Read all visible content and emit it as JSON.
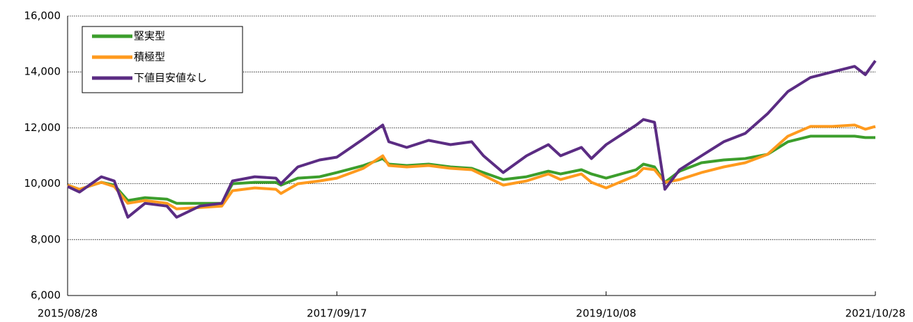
{
  "chart_data": {
    "type": "line",
    "x": [
      "2015/08/28",
      "2015/09/30",
      "2015/11/30",
      "2016/01/05",
      "2016/02/12",
      "2016/03/31",
      "2016/05/31",
      "2016/06/27",
      "2016/08/31",
      "2016/10/31",
      "2016/11/30",
      "2017/01/31",
      "2017/03/31",
      "2017/04/14",
      "2017/05/31",
      "2017/07/31",
      "2017/09/17",
      "2017/11/30",
      "2018/01/23",
      "2018/02/09",
      "2018/03/31",
      "2018/05/31",
      "2018/07/31",
      "2018/09/28",
      "2018/10/31",
      "2018/12/25",
      "2019/02/28",
      "2019/04/30",
      "2019/06/03",
      "2019/07/31",
      "2019/08/28",
      "2019/10/08",
      "2019/12/31",
      "2020/01/20",
      "2020/02/20",
      "2020/03/20",
      "2020/04/30",
      "2020/06/30",
      "2020/08/31",
      "2020/10/30",
      "2020/12/31",
      "2021/02/26",
      "2021/04/30",
      "2021/06/30",
      "2021/08/31",
      "2021/09/30",
      "2021/10/28"
    ],
    "series": [
      {
        "name": "堅実型",
        "color": "#3c9e2c",
        "values": [
          9950,
          9800,
          10050,
          9950,
          9400,
          9500,
          9450,
          9300,
          9300,
          9300,
          10000,
          10050,
          10050,
          9950,
          10200,
          10250,
          10400,
          10650,
          10900,
          10700,
          10650,
          10700,
          10600,
          10550,
          10400,
          10150,
          10250,
          10450,
          10350,
          10500,
          10350,
          10200,
          10500,
          10700,
          10600,
          10050,
          10450,
          10750,
          10850,
          10900,
          11050,
          11500,
          11700,
          11700,
          11700,
          11650,
          11650
        ]
      },
      {
        "name": "積極型",
        "color": "#ff9a1e",
        "values": [
          9950,
          9800,
          10050,
          9900,
          9300,
          9400,
          9300,
          9100,
          9150,
          9200,
          9750,
          9850,
          9800,
          9650,
          10000,
          10100,
          10200,
          10550,
          11000,
          10650,
          10600,
          10650,
          10550,
          10500,
          10300,
          9950,
          10100,
          10350,
          10150,
          10350,
          10050,
          9850,
          10300,
          10550,
          10500,
          10050,
          10150,
          10400,
          10600,
          10750,
          11050,
          11700,
          12050,
          12050,
          12100,
          11950,
          12050
        ]
      },
      {
        "name": "下値目安値なし",
        "color": "#5b2c83",
        "values": [
          9900,
          9700,
          10250,
          10100,
          8800,
          9300,
          9200,
          8800,
          9200,
          9300,
          10100,
          10250,
          10200,
          10000,
          10600,
          10850,
          10950,
          11600,
          12100,
          11500,
          11300,
          11550,
          11400,
          11500,
          11000,
          10400,
          11000,
          11400,
          11000,
          11300,
          10900,
          11400,
          12100,
          12300,
          12200,
          9800,
          10500,
          11000,
          11500,
          11800,
          12500,
          13300,
          13800,
          14000,
          14200,
          13900,
          14400
        ]
      }
    ],
    "xlim": [
      "2015/08/28",
      "2021/10/28"
    ],
    "xticks": [
      "2015/08/28",
      "2017/09/17",
      "2019/10/08",
      "2021/10/28"
    ],
    "ylim": [
      6000,
      16000
    ],
    "yticks": [
      {
        "value": 6000,
        "label": "6,000"
      },
      {
        "value": 8000,
        "label": "8,000"
      },
      {
        "value": 10000,
        "label": "10,000"
      },
      {
        "value": 12000,
        "label": "12,000"
      },
      {
        "value": 14000,
        "label": "14,000"
      },
      {
        "value": 16000,
        "label": "16,000"
      }
    ],
    "grid": true,
    "legend": "upper left"
  }
}
